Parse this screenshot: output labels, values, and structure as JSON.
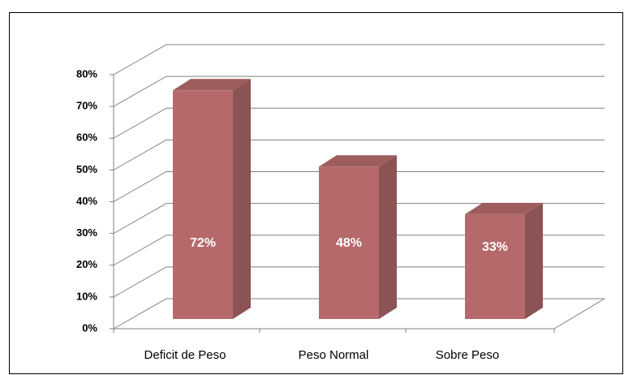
{
  "chart_data": {
    "type": "bar3d",
    "categories": [
      "Deficit de Peso",
      "Peso Normal",
      "Sobre Peso"
    ],
    "values": [
      72,
      48,
      33
    ],
    "value_labels": [
      "72%",
      "48%",
      "33%"
    ],
    "color": "#b5696a",
    "ylim": [
      0,
      80
    ],
    "yticks": [
      {
        "value": 0,
        "label": "0%"
      },
      {
        "value": 10,
        "label": "10%"
      },
      {
        "value": 20,
        "label": "20%"
      },
      {
        "value": 30,
        "label": "30%"
      },
      {
        "value": 40,
        "label": "40%"
      },
      {
        "value": 50,
        "label": "50%"
      },
      {
        "value": 60,
        "label": "60%"
      },
      {
        "value": 70,
        "label": "70%"
      },
      {
        "value": 80,
        "label": "80%"
      }
    ],
    "grid": true
  }
}
